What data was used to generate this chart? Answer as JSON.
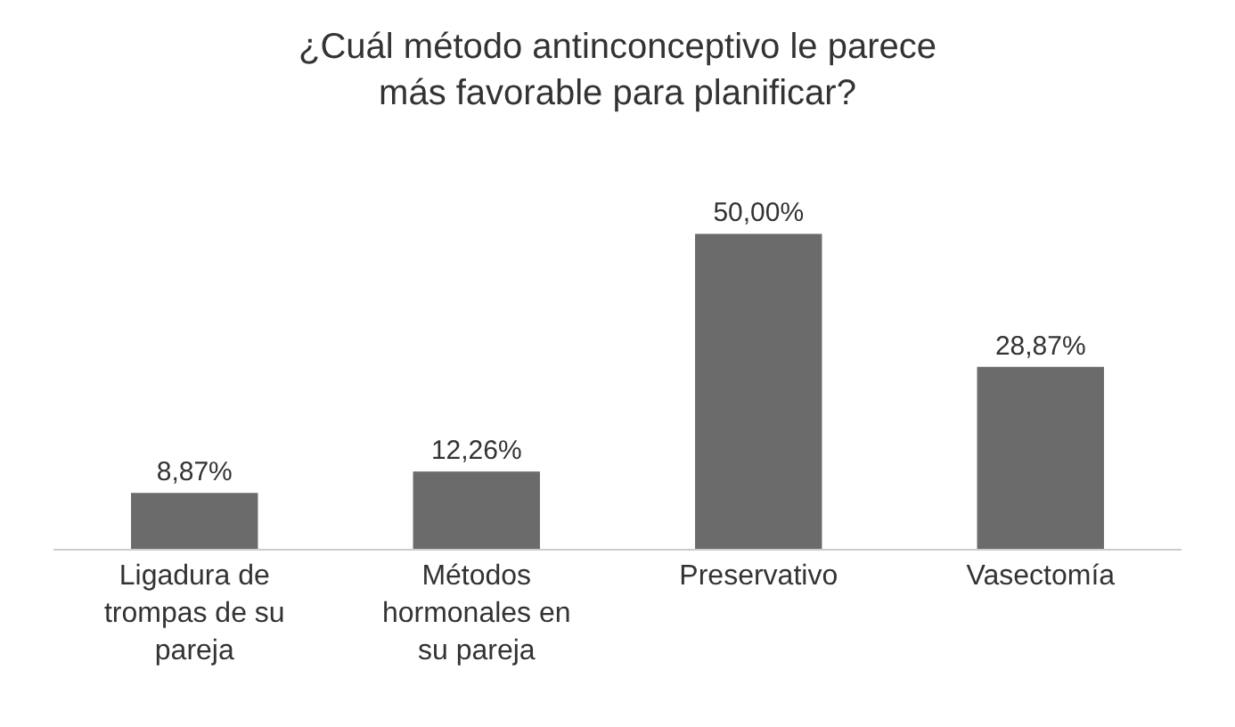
{
  "chart_data": {
    "type": "bar",
    "title": "¿Cuál método antinconceptivo le parece\nmás favorable para planificar?",
    "categories": [
      "Ligadura de trompas de su pareja",
      "Métodos hormonales en su pareja",
      "Preservativo",
      "Vasectomía"
    ],
    "values": [
      8.87,
      12.26,
      50.0,
      28.87
    ],
    "value_labels": [
      "8,87%",
      "12,26%",
      "50,00%",
      "28,87%"
    ],
    "color": "#6b6b6b"
  }
}
